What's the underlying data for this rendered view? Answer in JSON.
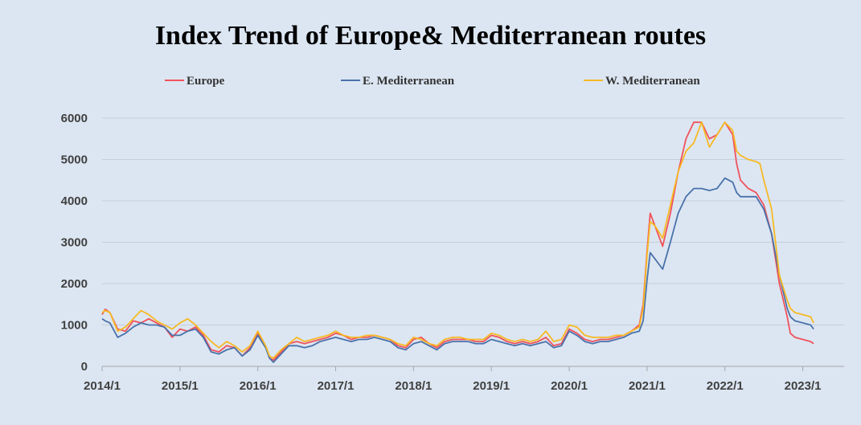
{
  "chart_data": {
    "type": "line",
    "title": "Index Trend of Europe& Mediterranean routes",
    "xlabel": "",
    "ylabel": "",
    "ylim": [
      0,
      6000
    ],
    "yticks": [
      "0",
      "1000",
      "2000",
      "3000",
      "4000",
      "5000",
      "6000"
    ],
    "xlim": [
      2014.0,
      2023.18
    ],
    "xticks": [
      {
        "label": "2014/1",
        "x": 2014
      },
      {
        "label": "2015/1",
        "x": 2015
      },
      {
        "label": "2016/1",
        "x": 2016
      },
      {
        "label": "2017/1",
        "x": 2017
      },
      {
        "label": "2018/1",
        "x": 2018
      },
      {
        "label": "2019/1",
        "x": 2019
      },
      {
        "label": "2020/1",
        "x": 2020
      },
      {
        "label": "2021/1",
        "x": 2021
      },
      {
        "label": "2022/1",
        "x": 2022
      },
      {
        "label": "2023/1",
        "x": 2023
      }
    ],
    "grid": "horizontal",
    "legend_position": "top",
    "series": [
      {
        "name": "Europe",
        "color": "#f0525c",
        "points": [
          [
            2014.0,
            1250
          ],
          [
            2014.04,
            1380
          ],
          [
            2014.1,
            1300
          ],
          [
            2014.2,
            900
          ],
          [
            2014.3,
            850
          ],
          [
            2014.4,
            1100
          ],
          [
            2014.5,
            1050
          ],
          [
            2014.6,
            1150
          ],
          [
            2014.7,
            1050
          ],
          [
            2014.8,
            950
          ],
          [
            2014.9,
            700
          ],
          [
            2015.0,
            900
          ],
          [
            2015.1,
            850
          ],
          [
            2015.2,
            950
          ],
          [
            2015.3,
            750
          ],
          [
            2015.4,
            400
          ],
          [
            2015.5,
            350
          ],
          [
            2015.6,
            500
          ],
          [
            2015.7,
            450
          ],
          [
            2015.8,
            250
          ],
          [
            2015.9,
            450
          ],
          [
            2016.0,
            800
          ],
          [
            2016.1,
            500
          ],
          [
            2016.15,
            200
          ],
          [
            2016.2,
            150
          ],
          [
            2016.3,
            350
          ],
          [
            2016.4,
            550
          ],
          [
            2016.5,
            600
          ],
          [
            2016.6,
            550
          ],
          [
            2016.7,
            600
          ],
          [
            2016.8,
            650
          ],
          [
            2016.9,
            700
          ],
          [
            2017.0,
            800
          ],
          [
            2017.1,
            750
          ],
          [
            2017.2,
            650
          ],
          [
            2017.3,
            700
          ],
          [
            2017.4,
            700
          ],
          [
            2017.5,
            750
          ],
          [
            2017.6,
            700
          ],
          [
            2017.7,
            650
          ],
          [
            2017.8,
            500
          ],
          [
            2017.9,
            450
          ],
          [
            2018.0,
            650
          ],
          [
            2018.1,
            700
          ],
          [
            2018.2,
            550
          ],
          [
            2018.3,
            450
          ],
          [
            2018.4,
            600
          ],
          [
            2018.5,
            650
          ],
          [
            2018.6,
            650
          ],
          [
            2018.7,
            650
          ],
          [
            2018.8,
            600
          ],
          [
            2018.9,
            600
          ],
          [
            2019.0,
            750
          ],
          [
            2019.1,
            700
          ],
          [
            2019.2,
            600
          ],
          [
            2019.3,
            550
          ],
          [
            2019.4,
            600
          ],
          [
            2019.5,
            550
          ],
          [
            2019.6,
            600
          ],
          [
            2019.7,
            700
          ],
          [
            2019.8,
            500
          ],
          [
            2019.9,
            550
          ],
          [
            2020.0,
            900
          ],
          [
            2020.1,
            800
          ],
          [
            2020.2,
            650
          ],
          [
            2020.3,
            600
          ],
          [
            2020.4,
            650
          ],
          [
            2020.5,
            650
          ],
          [
            2020.6,
            700
          ],
          [
            2020.7,
            750
          ],
          [
            2020.8,
            850
          ],
          [
            2020.9,
            1000
          ],
          [
            2020.95,
            1500
          ],
          [
            2021.0,
            2800
          ],
          [
            2021.04,
            3700
          ],
          [
            2021.1,
            3400
          ],
          [
            2021.2,
            2900
          ],
          [
            2021.3,
            3700
          ],
          [
            2021.4,
            4700
          ],
          [
            2021.5,
            5500
          ],
          [
            2021.6,
            5900
          ],
          [
            2021.7,
            5900
          ],
          [
            2021.8,
            5500
          ],
          [
            2021.9,
            5600
          ],
          [
            2022.0,
            5900
          ],
          [
            2022.1,
            5600
          ],
          [
            2022.15,
            4900
          ],
          [
            2022.2,
            4500
          ],
          [
            2022.3,
            4300
          ],
          [
            2022.4,
            4200
          ],
          [
            2022.5,
            3900
          ],
          [
            2022.6,
            3200
          ],
          [
            2022.7,
            2000
          ],
          [
            2022.8,
            1200
          ],
          [
            2022.84,
            800
          ],
          [
            2022.9,
            700
          ],
          [
            2023.0,
            650
          ],
          [
            2023.1,
            600
          ],
          [
            2023.14,
            550
          ]
        ]
      },
      {
        "name": "E. Mediterranean",
        "color": "#4a72aa",
        "points": [
          [
            2014.0,
            1150
          ],
          [
            2014.04,
            1100
          ],
          [
            2014.1,
            1050
          ],
          [
            2014.2,
            700
          ],
          [
            2014.3,
            800
          ],
          [
            2014.4,
            950
          ],
          [
            2014.5,
            1050
          ],
          [
            2014.6,
            1000
          ],
          [
            2014.7,
            1000
          ],
          [
            2014.8,
            950
          ],
          [
            2014.9,
            750
          ],
          [
            2015.0,
            750
          ],
          [
            2015.1,
            850
          ],
          [
            2015.2,
            900
          ],
          [
            2015.3,
            700
          ],
          [
            2015.4,
            350
          ],
          [
            2015.5,
            300
          ],
          [
            2015.6,
            400
          ],
          [
            2015.7,
            450
          ],
          [
            2015.8,
            250
          ],
          [
            2015.9,
            400
          ],
          [
            2016.0,
            750
          ],
          [
            2016.1,
            450
          ],
          [
            2016.15,
            200
          ],
          [
            2016.2,
            100
          ],
          [
            2016.3,
            300
          ],
          [
            2016.4,
            500
          ],
          [
            2016.5,
            500
          ],
          [
            2016.6,
            450
          ],
          [
            2016.7,
            500
          ],
          [
            2016.8,
            600
          ],
          [
            2016.9,
            650
          ],
          [
            2017.0,
            700
          ],
          [
            2017.1,
            650
          ],
          [
            2017.2,
            600
          ],
          [
            2017.3,
            650
          ],
          [
            2017.4,
            650
          ],
          [
            2017.5,
            700
          ],
          [
            2017.6,
            650
          ],
          [
            2017.7,
            600
          ],
          [
            2017.8,
            450
          ],
          [
            2017.9,
            400
          ],
          [
            2018.0,
            550
          ],
          [
            2018.1,
            600
          ],
          [
            2018.2,
            500
          ],
          [
            2018.3,
            400
          ],
          [
            2018.4,
            550
          ],
          [
            2018.5,
            600
          ],
          [
            2018.6,
            600
          ],
          [
            2018.7,
            600
          ],
          [
            2018.8,
            550
          ],
          [
            2018.9,
            550
          ],
          [
            2019.0,
            650
          ],
          [
            2019.1,
            600
          ],
          [
            2019.2,
            550
          ],
          [
            2019.3,
            500
          ],
          [
            2019.4,
            550
          ],
          [
            2019.5,
            500
          ],
          [
            2019.6,
            550
          ],
          [
            2019.7,
            600
          ],
          [
            2019.8,
            450
          ],
          [
            2019.9,
            500
          ],
          [
            2020.0,
            850
          ],
          [
            2020.1,
            750
          ],
          [
            2020.2,
            600
          ],
          [
            2020.3,
            550
          ],
          [
            2020.4,
            600
          ],
          [
            2020.5,
            600
          ],
          [
            2020.6,
            650
          ],
          [
            2020.7,
            700
          ],
          [
            2020.8,
            800
          ],
          [
            2020.9,
            850
          ],
          [
            2020.95,
            1100
          ],
          [
            2021.0,
            2100
          ],
          [
            2021.04,
            2750
          ],
          [
            2021.1,
            2600
          ],
          [
            2021.2,
            2350
          ],
          [
            2021.3,
            3000
          ],
          [
            2021.4,
            3700
          ],
          [
            2021.5,
            4100
          ],
          [
            2021.6,
            4300
          ],
          [
            2021.7,
            4300
          ],
          [
            2021.8,
            4250
          ],
          [
            2021.9,
            4300
          ],
          [
            2022.0,
            4550
          ],
          [
            2022.1,
            4450
          ],
          [
            2022.15,
            4200
          ],
          [
            2022.2,
            4100
          ],
          [
            2022.3,
            4100
          ],
          [
            2022.4,
            4100
          ],
          [
            2022.5,
            3800
          ],
          [
            2022.6,
            3200
          ],
          [
            2022.7,
            2200
          ],
          [
            2022.8,
            1400
          ],
          [
            2022.84,
            1200
          ],
          [
            2022.9,
            1100
          ],
          [
            2023.0,
            1050
          ],
          [
            2023.1,
            1000
          ],
          [
            2023.14,
            900
          ]
        ]
      },
      {
        "name": "W. Mediterranean",
        "color": "#f7b924",
        "points": [
          [
            2014.0,
            1300
          ],
          [
            2014.04,
            1350
          ],
          [
            2014.1,
            1300
          ],
          [
            2014.2,
            850
          ],
          [
            2014.3,
            950
          ],
          [
            2014.4,
            1150
          ],
          [
            2014.5,
            1350
          ],
          [
            2014.6,
            1250
          ],
          [
            2014.7,
            1100
          ],
          [
            2014.8,
            1000
          ],
          [
            2014.9,
            900
          ],
          [
            2015.0,
            1050
          ],
          [
            2015.1,
            1150
          ],
          [
            2015.2,
            1000
          ],
          [
            2015.3,
            800
          ],
          [
            2015.4,
            600
          ],
          [
            2015.5,
            450
          ],
          [
            2015.6,
            600
          ],
          [
            2015.7,
            500
          ],
          [
            2015.8,
            350
          ],
          [
            2015.9,
            500
          ],
          [
            2016.0,
            850
          ],
          [
            2016.1,
            500
          ],
          [
            2016.15,
            250
          ],
          [
            2016.2,
            200
          ],
          [
            2016.3,
            400
          ],
          [
            2016.4,
            550
          ],
          [
            2016.5,
            700
          ],
          [
            2016.6,
            600
          ],
          [
            2016.7,
            650
          ],
          [
            2016.8,
            700
          ],
          [
            2016.9,
            750
          ],
          [
            2017.0,
            850
          ],
          [
            2017.1,
            750
          ],
          [
            2017.2,
            700
          ],
          [
            2017.3,
            700
          ],
          [
            2017.4,
            750
          ],
          [
            2017.5,
            750
          ],
          [
            2017.6,
            700
          ],
          [
            2017.7,
            650
          ],
          [
            2017.8,
            550
          ],
          [
            2017.9,
            500
          ],
          [
            2018.0,
            700
          ],
          [
            2018.1,
            650
          ],
          [
            2018.2,
            550
          ],
          [
            2018.3,
            500
          ],
          [
            2018.4,
            650
          ],
          [
            2018.5,
            700
          ],
          [
            2018.6,
            700
          ],
          [
            2018.7,
            650
          ],
          [
            2018.8,
            650
          ],
          [
            2018.9,
            650
          ],
          [
            2019.0,
            800
          ],
          [
            2019.1,
            750
          ],
          [
            2019.2,
            650
          ],
          [
            2019.3,
            600
          ],
          [
            2019.4,
            650
          ],
          [
            2019.5,
            600
          ],
          [
            2019.6,
            650
          ],
          [
            2019.7,
            850
          ],
          [
            2019.8,
            600
          ],
          [
            2019.9,
            650
          ],
          [
            2020.0,
            1000
          ],
          [
            2020.1,
            950
          ],
          [
            2020.2,
            750
          ],
          [
            2020.3,
            700
          ],
          [
            2020.4,
            700
          ],
          [
            2020.5,
            700
          ],
          [
            2020.6,
            750
          ],
          [
            2020.7,
            750
          ],
          [
            2020.8,
            850
          ],
          [
            2020.9,
            950
          ],
          [
            2020.95,
            1400
          ],
          [
            2021.0,
            2700
          ],
          [
            2021.04,
            3500
          ],
          [
            2021.1,
            3400
          ],
          [
            2021.2,
            3100
          ],
          [
            2021.3,
            3900
          ],
          [
            2021.4,
            4700
          ],
          [
            2021.5,
            5200
          ],
          [
            2021.6,
            5400
          ],
          [
            2021.7,
            5900
          ],
          [
            2021.8,
            5300
          ],
          [
            2021.9,
            5600
          ],
          [
            2022.0,
            5900
          ],
          [
            2022.1,
            5700
          ],
          [
            2022.15,
            5200
          ],
          [
            2022.2,
            5100
          ],
          [
            2022.3,
            5000
          ],
          [
            2022.4,
            4950
          ],
          [
            2022.45,
            4900
          ],
          [
            2022.5,
            4500
          ],
          [
            2022.6,
            3800
          ],
          [
            2022.7,
            2200
          ],
          [
            2022.8,
            1600
          ],
          [
            2022.84,
            1400
          ],
          [
            2022.9,
            1300
          ],
          [
            2023.0,
            1250
          ],
          [
            2023.1,
            1200
          ],
          [
            2023.14,
            1050
          ]
        ]
      }
    ]
  }
}
